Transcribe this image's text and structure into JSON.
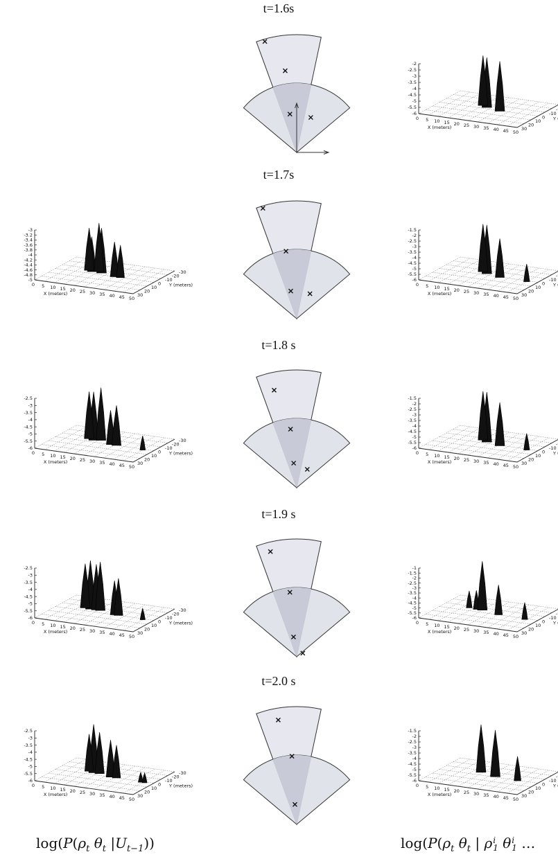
{
  "rows": [
    {
      "time": "t=1.6s",
      "left": null,
      "right": {
        "z_ticks": [
          "-2",
          "-2.5",
          "-3",
          "-3.5",
          "-4",
          "-4.5",
          "-5",
          "-5.5",
          "-6"
        ],
        "peaks": [
          {
            "x": 20,
            "y": -6,
            "z": -2
          },
          {
            "x": 23,
            "y": -3,
            "z": -2
          },
          {
            "x": 31,
            "y": 1,
            "z": -2
          }
        ]
      },
      "sensor": {
        "targets": [
          {
            "r": 0.98,
            "a": -16
          },
          {
            "r": 0.7,
            "a": -8
          },
          {
            "r": 0.33,
            "a": -10
          },
          {
            "r": 0.32,
            "a": 22
          }
        ],
        "axes": true
      }
    },
    {
      "time": "t=1.7s",
      "left": {
        "z_ticks": [
          "-3",
          "-3.2",
          "-3.4",
          "-3.6",
          "-3.8",
          "-4",
          "-4.2",
          "-4.4",
          "-4.6",
          "-4.8",
          "-5"
        ],
        "peaks": [
          {
            "x": 15,
            "y": -6,
            "z": -3.3
          },
          {
            "x": 17,
            "y": -4,
            "z": -3.6
          },
          {
            "x": 20,
            "y": -6,
            "z": -3.05
          },
          {
            "x": 22,
            "y": -4,
            "z": -3.2
          },
          {
            "x": 30,
            "y": 0,
            "z": -3.6
          },
          {
            "x": 33,
            "y": 0,
            "z": -3.7
          }
        ]
      },
      "right": {
        "z_ticks": [
          "-1.5",
          "-2",
          "-2.5",
          "-3",
          "-3.5",
          "-4",
          "-4.5",
          "-5",
          "-5.5",
          "-6"
        ],
        "peaks": [
          {
            "x": 20,
            "y": -6,
            "z": -1.7
          },
          {
            "x": 23,
            "y": -3,
            "z": -1.6
          },
          {
            "x": 31,
            "y": 1,
            "z": -2.5
          },
          {
            "x": 45,
            "y": 2,
            "z": -4.4
          }
        ]
      },
      "sensor": {
        "targets": [
          {
            "r": 0.98,
            "a": -17
          },
          {
            "r": 0.58,
            "a": -9
          },
          {
            "r": 0.24,
            "a": -12
          },
          {
            "r": 0.24,
            "a": 28
          }
        ],
        "axes": false
      }
    },
    {
      "time": "t=1.8 s",
      "left": {
        "z_ticks": [
          "-2.5",
          "-3",
          "-3.5",
          "-4",
          "-4.5",
          "-5",
          "-5.5",
          "-6"
        ],
        "peaks": [
          {
            "x": 15,
            "y": -6,
            "z": -2.7
          },
          {
            "x": 18,
            "y": -4,
            "z": -2.6
          },
          {
            "x": 21,
            "y": -6,
            "z": -2.3
          },
          {
            "x": 28,
            "y": 0,
            "z": -3.6
          },
          {
            "x": 31,
            "y": 0,
            "z": -3.2
          },
          {
            "x": 45,
            "y": 2,
            "z": -5.0
          }
        ]
      },
      "right": {
        "z_ticks": [
          "-1.5",
          "-2",
          "-2.5",
          "-3",
          "-3.5",
          "-4",
          "-4.5",
          "-5",
          "-5.5",
          "-6"
        ],
        "peaks": [
          {
            "x": 20,
            "y": -6,
            "z": -1.6
          },
          {
            "x": 23,
            "y": -3,
            "z": -1.5
          },
          {
            "x": 31,
            "y": 1,
            "z": -2.1
          },
          {
            "x": 45,
            "y": 2,
            "z": -4.5
          }
        ]
      },
      "sensor": {
        "targets": [
          {
            "r": 0.85,
            "a": -13
          },
          {
            "r": 0.5,
            "a": -6
          },
          {
            "r": 0.21,
            "a": -7
          },
          {
            "r": 0.18,
            "a": 30
          }
        ],
        "axes": false
      }
    },
    {
      "time": "t=1.9 s",
      "left": {
        "z_ticks": [
          "-2.5",
          "-3",
          "-3.5",
          "-4",
          "-4.5",
          "-5",
          "-5.5",
          "-6"
        ],
        "peaks": [
          {
            "x": 13,
            "y": -6,
            "z": -2.9
          },
          {
            "x": 16,
            "y": -5,
            "z": -2.6
          },
          {
            "x": 19,
            "y": -5,
            "z": -2.8
          },
          {
            "x": 21,
            "y": -5,
            "z": -2.6
          },
          {
            "x": 30,
            "y": 0,
            "z": -3.6
          },
          {
            "x": 32,
            "y": 0,
            "z": -3.4
          },
          {
            "x": 45,
            "y": 2,
            "z": -5.2
          }
        ]
      },
      "right": {
        "z_ticks": [
          "-1",
          "-1.5",
          "-2",
          "-2.5",
          "-3",
          "-3.5",
          "-4",
          "-4.5",
          "-5",
          "-5.5",
          "-6"
        ],
        "peaks": [
          {
            "x": 13,
            "y": -6,
            "z": -4.3
          },
          {
            "x": 17,
            "y": -5,
            "z": -4.1
          },
          {
            "x": 20,
            "y": -5,
            "z": -1.1
          },
          {
            "x": 30,
            "y": 0,
            "z": -3.0
          },
          {
            "x": 44,
            "y": 2,
            "z": -4.3
          }
        ]
      },
      "sensor": {
        "targets": [
          {
            "r": 0.92,
            "a": -14
          },
          {
            "r": 0.55,
            "a": -6
          },
          {
            "r": 0.17,
            "a": -9
          },
          {
            "r": 0.06,
            "a": 60
          }
        ],
        "axes": false
      }
    },
    {
      "time": "t=2.0 s",
      "left": {
        "z_ticks": [
          "-2.5",
          "-3",
          "-3.5",
          "-4",
          "-4.5",
          "-5",
          "-5.5",
          "-6"
        ],
        "peaks": [
          {
            "x": 15,
            "y": -6,
            "z": -3.4
          },
          {
            "x": 18,
            "y": -4,
            "z": -2.6
          },
          {
            "x": 21,
            "y": -4,
            "z": -3.1
          },
          {
            "x": 28,
            "y": 0,
            "z": -3.4
          },
          {
            "x": 31,
            "y": 0,
            "z": -3.7
          },
          {
            "x": 44,
            "y": 2,
            "z": -5.3
          },
          {
            "x": 46,
            "y": 2,
            "z": -5.3
          }
        ]
      },
      "right": {
        "z_ticks": [
          "-1.5",
          "-2",
          "-2.5",
          "-3",
          "-3.5",
          "-4",
          "-4.5",
          "-5",
          "-5.5",
          "-6"
        ],
        "peaks": [
          {
            "x": 19,
            "y": -6,
            "z": -1.7
          },
          {
            "x": 28,
            "y": -1,
            "z": -1.8
          },
          {
            "x": 40,
            "y": 1,
            "z": -3.8
          }
        ]
      },
      "sensor": {
        "targets": [
          {
            "r": 0.9,
            "a": -10
          },
          {
            "r": 0.58,
            "a": -4
          },
          {
            "r": 0.17,
            "a": -5
          }
        ],
        "axes": false
      }
    }
  ],
  "axis": {
    "x_ticks": [
      "0",
      "5",
      "10",
      "15",
      "20",
      "25",
      "30",
      "35",
      "40",
      "45",
      "50"
    ],
    "y_ticks": [
      "30",
      "20",
      "10",
      "0",
      "-10",
      "-20",
      "-30"
    ],
    "x_label": "X (meters)",
    "y_label": "Y (meters)"
  },
  "captions": {
    "left": "log(P(ρ_t θ_t |U_{t−1}))",
    "right": "log(P(ρ_t θ_t | ρ_1^i θ_1^i …"
  }
}
